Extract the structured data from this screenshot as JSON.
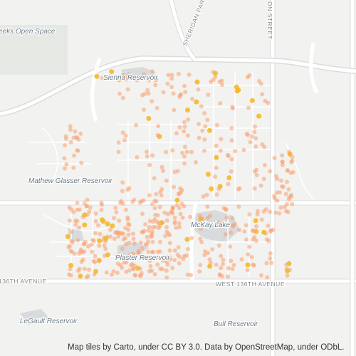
{
  "labels": {
    "open_space": "eeks Open Space",
    "sheridan": "SHERIDAN PAR",
    "huron": "ON STREET",
    "sienna": "Sienna Reservoir",
    "glasser": "Mathew Glasser Reservoir",
    "mckay": "McKay Lake",
    "plaster": "Plaster Reservoir",
    "ave_left": "136TH AVENUE",
    "ave_right": "WEST 136TH AVENUE",
    "legault": "LeGault Reservoir",
    "bull": "Bull Reservoir"
  },
  "attribution": "Map tiles by Carto, under CC BY 3.0. Data by OpenStreetMap, under ODbL."
}
